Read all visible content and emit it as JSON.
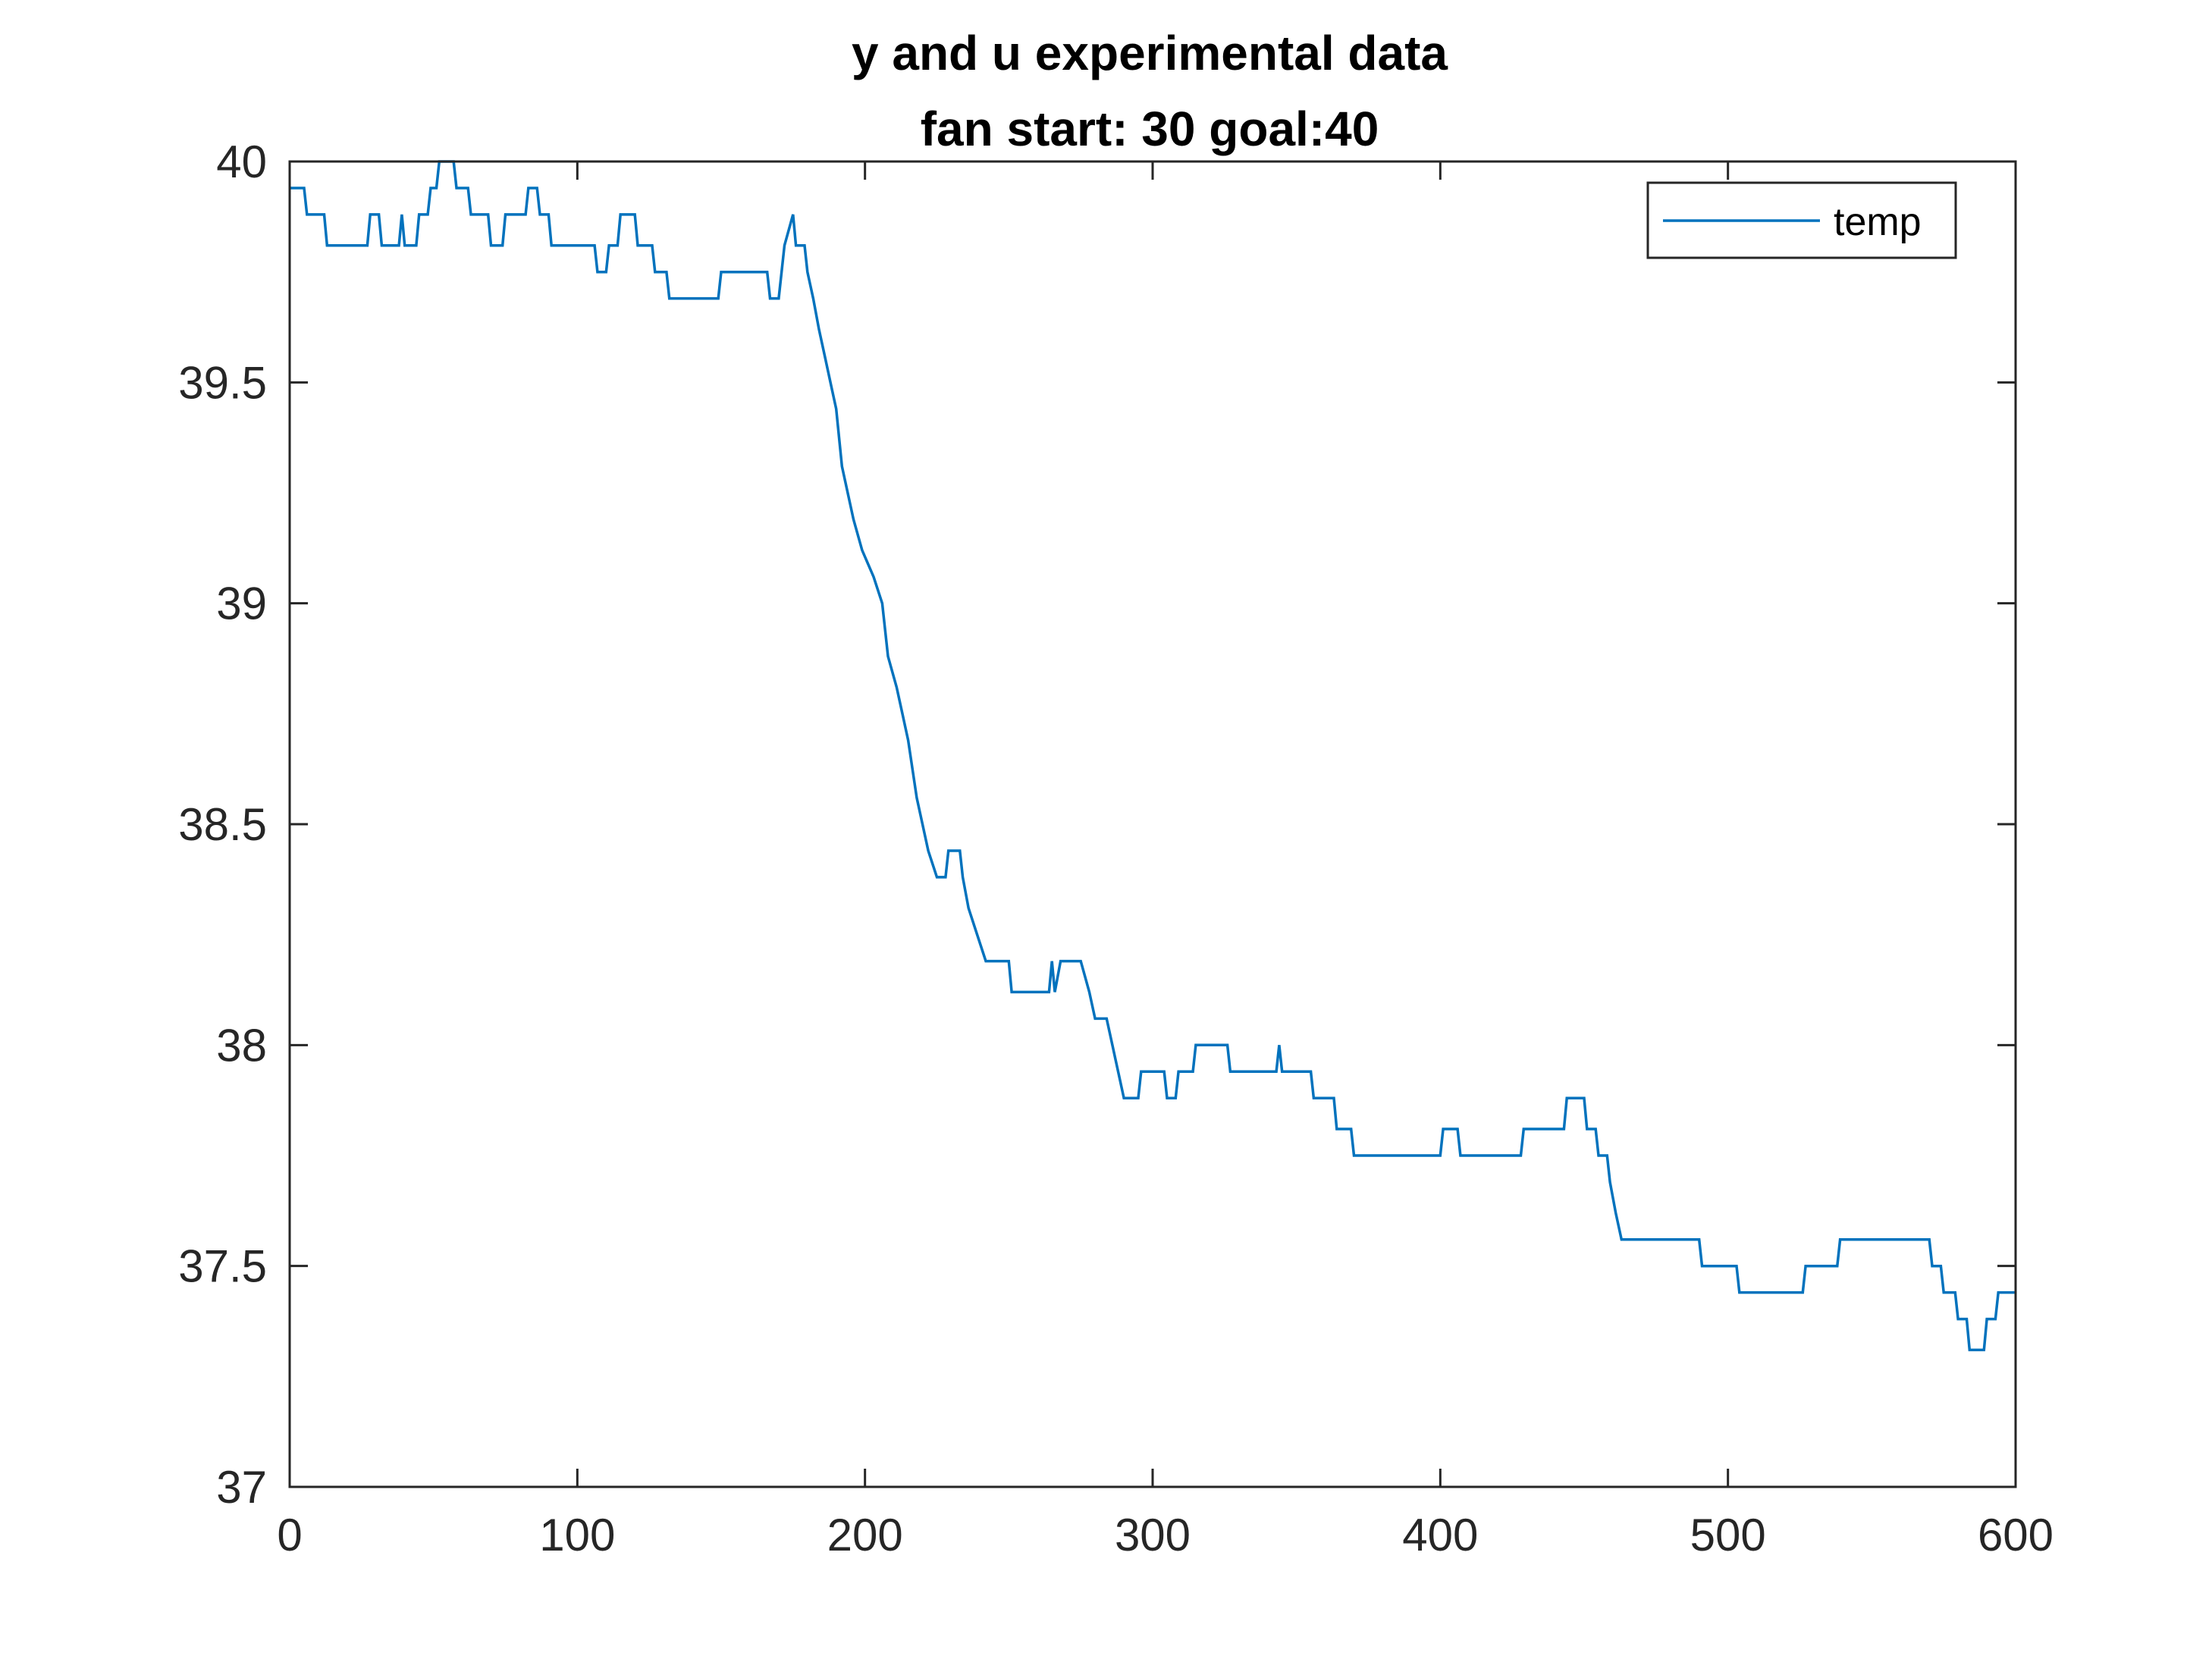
{
  "chart_data": {
    "type": "line",
    "title": "y and u experimental data",
    "subtitle": "fan start: 30 goal:40",
    "xlabel": "",
    "ylabel": "",
    "xlim": [
      0,
      600
    ],
    "ylim": [
      37,
      40
    ],
    "x_ticks": [
      0,
      100,
      200,
      300,
      400,
      500,
      600
    ],
    "y_ticks": [
      37,
      37.5,
      38,
      38.5,
      39,
      39.5,
      40
    ],
    "x_tick_labels": [
      "0",
      "100",
      "200",
      "300",
      "400",
      "500",
      "600"
    ],
    "y_tick_labels": [
      "37",
      "37.5",
      "38",
      "38.5",
      "39",
      "39.5",
      "40"
    ],
    "grid": false,
    "legend_position": "top-right",
    "colors": {
      "line": "#0072bd",
      "axes": "#262626",
      "background": "#ffffff"
    },
    "series": [
      {
        "name": "temp",
        "points": [
          [
            0,
            39.94
          ],
          [
            5,
            39.94
          ],
          [
            6,
            39.88
          ],
          [
            12,
            39.88
          ],
          [
            13,
            39.81
          ],
          [
            27,
            39.81
          ],
          [
            28,
            39.88
          ],
          [
            31,
            39.88
          ],
          [
            32,
            39.81
          ],
          [
            38,
            39.81
          ],
          [
            39,
            39.88
          ],
          [
            40,
            39.81
          ],
          [
            44,
            39.81
          ],
          [
            45,
            39.88
          ],
          [
            48,
            39.88
          ],
          [
            49,
            39.94
          ],
          [
            51,
            39.94
          ],
          [
            52,
            40.0
          ],
          [
            57,
            40.0
          ],
          [
            58,
            39.94
          ],
          [
            62,
            39.94
          ],
          [
            63,
            39.88
          ],
          [
            69,
            39.88
          ],
          [
            70,
            39.81
          ],
          [
            74,
            39.81
          ],
          [
            75,
            39.88
          ],
          [
            82,
            39.88
          ],
          [
            83,
            39.94
          ],
          [
            86,
            39.94
          ],
          [
            87,
            39.88
          ],
          [
            90,
            39.88
          ],
          [
            91,
            39.81
          ],
          [
            106,
            39.81
          ],
          [
            107,
            39.75
          ],
          [
            110,
            39.75
          ],
          [
            111,
            39.81
          ],
          [
            114,
            39.81
          ],
          [
            115,
            39.88
          ],
          [
            120,
            39.88
          ],
          [
            121,
            39.81
          ],
          [
            126,
            39.81
          ],
          [
            127,
            39.75
          ],
          [
            131,
            39.75
          ],
          [
            132,
            39.69
          ],
          [
            149,
            39.69
          ],
          [
            150,
            39.75
          ],
          [
            166,
            39.75
          ],
          [
            167,
            39.69
          ],
          [
            170,
            39.69
          ],
          [
            171,
            39.75
          ],
          [
            172,
            39.81
          ],
          [
            175,
            39.88
          ],
          [
            176,
            39.81
          ],
          [
            179,
            39.81
          ],
          [
            180,
            39.75
          ],
          [
            182,
            39.69
          ],
          [
            184,
            39.62
          ],
          [
            186,
            39.56
          ],
          [
            188,
            39.5
          ],
          [
            190,
            39.44
          ],
          [
            192,
            39.31
          ],
          [
            194,
            39.25
          ],
          [
            196,
            39.19
          ],
          [
            199,
            39.12
          ],
          [
            203,
            39.06
          ],
          [
            206,
            39.0
          ],
          [
            208,
            38.88
          ],
          [
            211,
            38.81
          ],
          [
            213,
            38.75
          ],
          [
            215,
            38.69
          ],
          [
            218,
            38.56
          ],
          [
            220,
            38.5
          ],
          [
            222,
            38.44
          ],
          [
            225,
            38.38
          ],
          [
            228,
            38.38
          ],
          [
            229,
            38.44
          ],
          [
            233,
            38.44
          ],
          [
            234,
            38.38
          ],
          [
            236,
            38.31
          ],
          [
            239,
            38.25
          ],
          [
            242,
            38.19
          ],
          [
            250,
            38.19
          ],
          [
            251,
            38.12
          ],
          [
            264,
            38.12
          ],
          [
            265,
            38.19
          ],
          [
            266,
            38.12
          ],
          [
            268,
            38.19
          ],
          [
            275,
            38.19
          ],
          [
            278,
            38.12
          ],
          [
            280,
            38.06
          ],
          [
            284,
            38.06
          ],
          [
            286,
            38.0
          ],
          [
            288,
            37.94
          ],
          [
            290,
            37.88
          ],
          [
            295,
            37.88
          ],
          [
            296,
            37.94
          ],
          [
            304,
            37.94
          ],
          [
            305,
            37.88
          ],
          [
            308,
            37.88
          ],
          [
            309,
            37.94
          ],
          [
            314,
            37.94
          ],
          [
            315,
            38.0
          ],
          [
            326,
            38.0
          ],
          [
            327,
            37.94
          ],
          [
            343,
            37.94
          ],
          [
            344,
            38.0
          ],
          [
            345,
            37.94
          ],
          [
            355,
            37.94
          ],
          [
            356,
            37.88
          ],
          [
            363,
            37.88
          ],
          [
            364,
            37.81
          ],
          [
            369,
            37.81
          ],
          [
            370,
            37.75
          ],
          [
            400,
            37.75
          ],
          [
            401,
            37.81
          ],
          [
            406,
            37.81
          ],
          [
            407,
            37.75
          ],
          [
            428,
            37.75
          ],
          [
            429,
            37.81
          ],
          [
            443,
            37.81
          ],
          [
            444,
            37.88
          ],
          [
            450,
            37.88
          ],
          [
            451,
            37.81
          ],
          [
            454,
            37.81
          ],
          [
            455,
            37.75
          ],
          [
            458,
            37.75
          ],
          [
            459,
            37.69
          ],
          [
            461,
            37.62
          ],
          [
            463,
            37.56
          ],
          [
            490,
            37.56
          ],
          [
            491,
            37.5
          ],
          [
            503,
            37.5
          ],
          [
            504,
            37.44
          ],
          [
            526,
            37.44
          ],
          [
            527,
            37.5
          ],
          [
            538,
            37.5
          ],
          [
            539,
            37.56
          ],
          [
            570,
            37.56
          ],
          [
            571,
            37.5
          ],
          [
            574,
            37.5
          ],
          [
            575,
            37.44
          ],
          [
            579,
            37.44
          ],
          [
            580,
            37.38
          ],
          [
            583,
            37.38
          ],
          [
            584,
            37.31
          ],
          [
            589,
            37.31
          ],
          [
            590,
            37.38
          ],
          [
            593,
            37.38
          ],
          [
            594,
            37.44
          ],
          [
            600,
            37.44
          ]
        ]
      }
    ]
  }
}
